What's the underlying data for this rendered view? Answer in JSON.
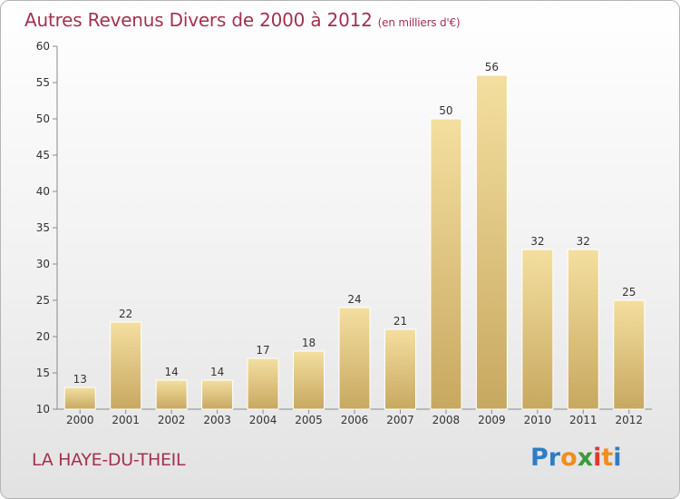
{
  "header": {
    "title": "Autres Revenus Divers de 2000 à 2012",
    "unit_note": "(en milliers d'€)"
  },
  "footer": {
    "place_name": "LA HAYE-DU-THEIL",
    "logo_text": "Proxiti"
  },
  "colors": {
    "title": "#a3314f",
    "bar_light": "#f4dfa0",
    "bar_dark": "#c9a95e",
    "axis": "#888888"
  },
  "chart_data": {
    "type": "bar",
    "title": "Autres Revenus Divers de 2000 à 2012",
    "subtitle": "(en milliers d'€)",
    "xlabel": "",
    "ylabel": "",
    "categories": [
      "2000",
      "2001",
      "2002",
      "2003",
      "2004",
      "2005",
      "2006",
      "2007",
      "2008",
      "2009",
      "2010",
      "2011",
      "2012"
    ],
    "values": [
      13,
      22,
      14,
      14,
      17,
      18,
      24,
      21,
      50,
      56,
      32,
      32,
      25
    ],
    "ylim": [
      10,
      60
    ],
    "yticks": [
      10,
      15,
      20,
      25,
      30,
      35,
      40,
      45,
      50,
      55,
      60
    ],
    "grid": false,
    "legend": "none"
  }
}
